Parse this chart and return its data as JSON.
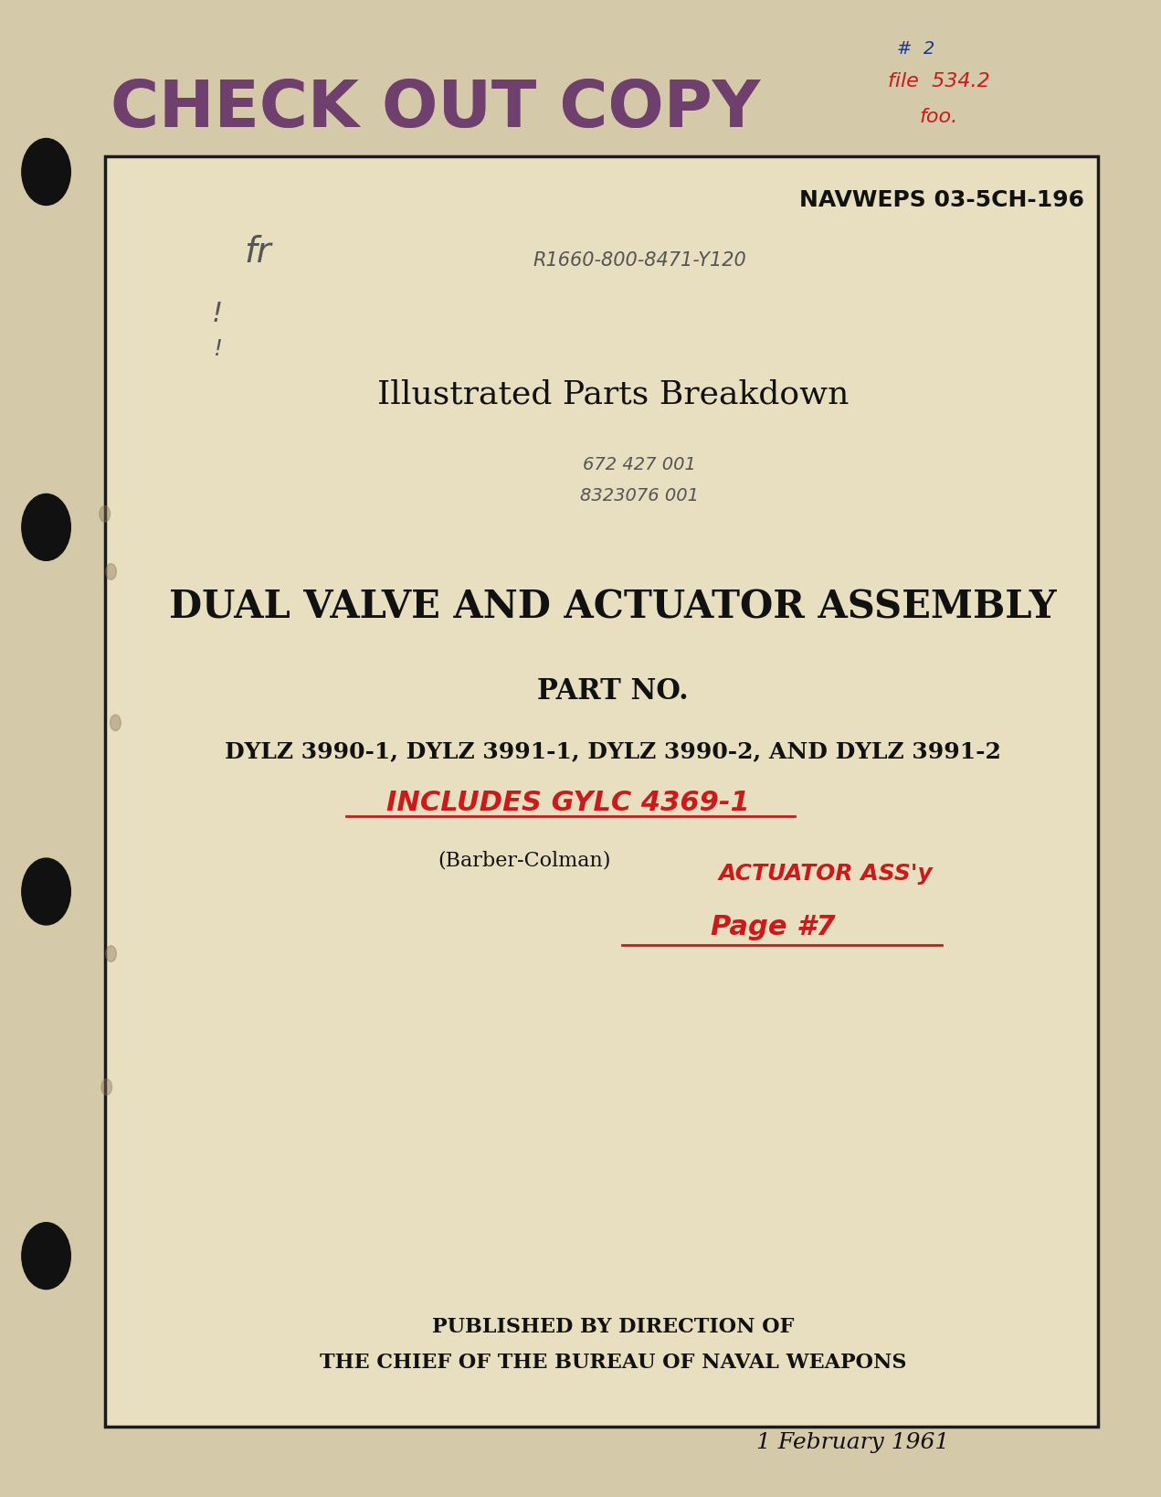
{
  "bg_color": "#d4c9a8",
  "page_bg": "#e8dfc0",
  "border_color": "#1a1a1a",
  "stamp_text": "CHECK OUT COPY",
  "stamp_color": "#6b3a6b",
  "handwrite_red": "#cc1a1a",
  "handwrite_blue": "#1a3a8a",
  "handwrite_pencil": "#555555",
  "doc_number": "NAVWEPS 03-5CH-196",
  "subtitle1": "Illustrated Parts Breakdown",
  "main_title": "DUAL VALVE AND ACTUATOR ASSEMBLY",
  "part_no_label": "PART NO.",
  "part_numbers": "DYLZ 3990-1, DYLZ 3991-1, DYLZ 3990-2, AND DYLZ 3991-2",
  "manufacturer": "(Barber-Colman)",
  "publisher_line1": "PUBLISHED BY DIRECTION OF",
  "publisher_line2": "THE CHIEF OF THE BUREAU OF NAVAL WEAPONS",
  "date": "1 February 1961",
  "handwrite_annotation1": "INCLUDES GYLC 4369-1",
  "handwrite_annotation2": "ACTUATOR ASS'y",
  "handwrite_annotation3": "Page #7",
  "handwrite_top1": "file  534.2",
  "handwrite_top2": "foo.",
  "handwrite_hash": "#  2",
  "handwrite_initials": "fr",
  "handwrite_code": "R1660-800-8471-Y120",
  "handwrite_nums1": "672 427 001",
  "handwrite_nums2": "8323076 001"
}
